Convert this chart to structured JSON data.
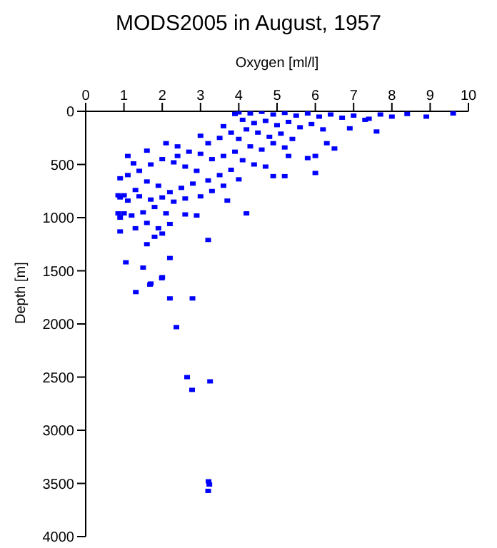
{
  "chart_data": {
    "type": "scatter",
    "title": "MODS2005 in August, 1957",
    "xlabel": "Oxygen [ml/l]",
    "ylabel": "Depth [m]",
    "xlim": [
      0,
      10
    ],
    "xticks": [
      0,
      1,
      2,
      3,
      4,
      5,
      6,
      7,
      8,
      9,
      10
    ],
    "ylim": [
      4000,
      0
    ],
    "yticks": [
      0,
      500,
      1000,
      1500,
      2000,
      2500,
      3000,
      3500,
      4000
    ],
    "grid": false,
    "legend": false,
    "marker": "square",
    "series": [
      {
        "color": "#0000ff",
        "x": [
          9.6,
          8.9,
          8.4,
          8.0,
          7.6,
          7.4,
          6.9,
          6.5,
          6.3,
          6.0,
          6.0,
          5.8,
          5.3,
          5.2,
          4.9,
          4.2,
          3.7,
          3.3,
          2.9,
          2.6,
          3.2,
          2.2,
          2.0,
          1.7,
          1.5,
          1.05,
          0.9,
          0.85,
          0.85,
          0.9,
          1.1,
          1.25,
          1.6,
          2.1,
          2.4,
          3.0,
          3.6,
          3.9,
          4.0,
          4.3,
          4.6,
          4.9,
          5.2,
          5.5,
          5.8,
          6.1,
          6.4,
          6.7,
          7.0,
          7.3,
          7.7,
          4.1,
          4.4,
          4.7,
          5.0,
          5.3,
          5.6,
          5.9,
          6.2,
          4.2,
          4.5,
          4.8,
          5.1,
          5.4,
          4.0,
          3.8,
          3.5,
          3.2,
          4.3,
          4.6,
          4.9,
          5.2,
          3.9,
          3.6,
          3.3,
          3.0,
          2.7,
          2.4,
          4.1,
          4.4,
          4.7,
          3.8,
          3.5,
          3.2,
          2.9,
          2.6,
          2.3,
          2.0,
          1.7,
          1.4,
          1.1,
          4.0,
          3.6,
          2.8,
          2.5,
          2.2,
          1.9,
          1.6,
          1.3,
          1.0,
          3.0,
          2.6,
          2.3,
          2.0,
          1.7,
          1.4,
          1.1,
          0.9,
          1.8,
          1.5,
          1.2,
          0.9,
          2.1,
          2.2,
          1.9,
          1.6,
          1.3,
          1.0,
          1.8,
          1.6,
          2.0,
          1.31,
          1.68,
          1.99,
          2.2,
          2.79,
          2.37,
          2.65,
          3.25,
          2.78,
          3.21,
          3.23,
          3.2
        ],
        "values": [
          20,
          50,
          25,
          50,
          190,
          70,
          160,
          350,
          300,
          420,
          580,
          440,
          420,
          610,
          610,
          960,
          840,
          750,
          980,
          970,
          1210,
          1380,
          1560,
          1620,
          1470,
          1420,
          1130,
          960,
          790,
          630,
          420,
          490,
          370,
          300,
          330,
          230,
          140,
          25,
          10,
          20,
          5,
          30,
          15,
          40,
          20,
          50,
          30,
          60,
          40,
          80,
          30,
          80,
          110,
          90,
          130,
          100,
          150,
          120,
          170,
          170,
          200,
          240,
          210,
          260,
          260,
          200,
          250,
          300,
          330,
          360,
          300,
          340,
          380,
          420,
          450,
          400,
          380,
          420,
          460,
          500,
          520,
          550,
          600,
          650,
          560,
          520,
          480,
          450,
          500,
          560,
          600,
          640,
          700,
          680,
          720,
          760,
          700,
          660,
          740,
          790,
          800,
          820,
          850,
          810,
          830,
          800,
          840,
          810,
          900,
          950,
          980,
          1000,
          960,
          1060,
          1100,
          1050,
          1100,
          960,
          1180,
          1250,
          1150,
          1700,
          1630,
          1570,
          1760,
          1760,
          2030,
          2500,
          2540,
          2620,
          3480,
          3510,
          3570
        ]
      }
    ]
  }
}
